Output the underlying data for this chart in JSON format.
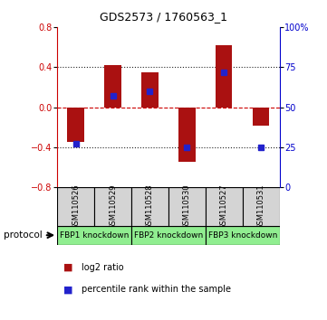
{
  "title": "GDS2573 / 1760563_1",
  "samples": [
    "GSM110526",
    "GSM110529",
    "GSM110528",
    "GSM110530",
    "GSM110527",
    "GSM110531"
  ],
  "log2_ratio": [
    -0.35,
    0.42,
    0.35,
    -0.55,
    0.62,
    -0.18
  ],
  "percentile_rank": [
    27,
    57,
    60,
    25,
    72,
    25
  ],
  "protocols": [
    {
      "label": "FBP1 knockdown",
      "start": 0,
      "end": 1
    },
    {
      "label": "FBP2 knockdown",
      "start": 2,
      "end": 3
    },
    {
      "label": "FBP3 knockdown",
      "start": 4,
      "end": 5
    }
  ],
  "ylim": [
    -0.8,
    0.8
  ],
  "yticks_left": [
    -0.8,
    -0.4,
    0.0,
    0.4,
    0.8
  ],
  "yticks_right": [
    0,
    25,
    50,
    75,
    100
  ],
  "bar_color": "#aa1111",
  "dot_color": "#2222cc",
  "bar_width": 0.45,
  "zero_line_color": "#cc0000",
  "grid_color": "#222222",
  "legend_bar_label": "log2 ratio",
  "legend_dot_label": "percentile rank within the sample",
  "left_tick_color": "#cc0000",
  "right_tick_color": "#0000cc",
  "sample_box_color": "#d4d4d4",
  "proto_green_light": "#90ee90",
  "proto_green_dark": "#44cc44"
}
